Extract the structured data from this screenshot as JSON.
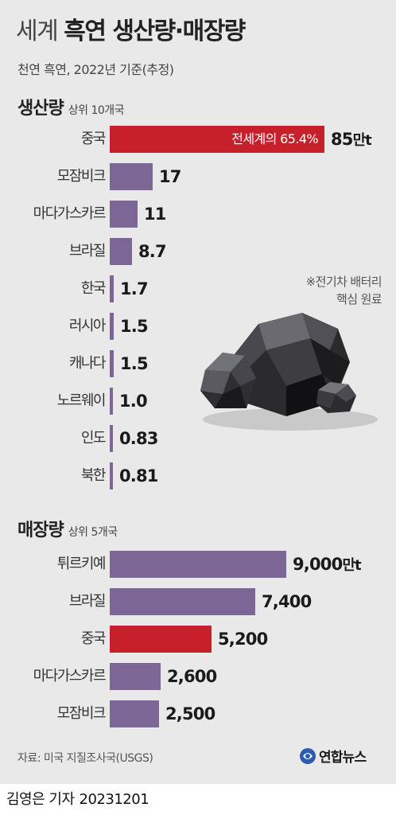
{
  "header": {
    "title_light": "세계",
    "title_bold": "흑연 생산량·매장량",
    "subtitle": "천연 흑연, 2022년 기준(추정)"
  },
  "note": [
    "※전기차 배터리",
    "핵심 원료"
  ],
  "footer": {
    "source": "자료: 미국 지질조사국(USGS)",
    "logo": "연합뉴스",
    "reporter": "김영은 기자",
    "date": "20231201"
  },
  "colors": {
    "highlight": "#c8202a",
    "bar": "#7b6696",
    "background": "#e9e9e9",
    "graphite": "#2b2b2e"
  },
  "chart_data": [
    {
      "type": "bar",
      "orientation": "horizontal",
      "title": "생산량",
      "subtitle": "상위 10개국",
      "unit": "만t",
      "categories": [
        "중국",
        "모잠비크",
        "마다가스카르",
        "브라질",
        "한국",
        "러시아",
        "캐나다",
        "노르웨이",
        "인도",
        "북한"
      ],
      "values": [
        85,
        17,
        11,
        8.7,
        1.7,
        1.5,
        1.5,
        1.0,
        0.83,
        0.81
      ],
      "value_labels": [
        "85",
        "17",
        "11",
        "8.7",
        "1.7",
        "1.5",
        "1.5",
        "1.0",
        "0.83",
        "0.81"
      ],
      "highlight": [
        "중국"
      ],
      "annotation": {
        "category": "중국",
        "text": "전세계의 65.4%"
      },
      "grid": false
    },
    {
      "type": "bar",
      "orientation": "horizontal",
      "title": "매장량",
      "subtitle": "상위 5개국",
      "unit": "만t",
      "categories": [
        "튀르키예",
        "브라질",
        "중국",
        "마다가스카르",
        "모잠비크"
      ],
      "values": [
        9000,
        7400,
        5200,
        2600,
        2500
      ],
      "value_labels": [
        "9,000",
        "7,400",
        "5,200",
        "2,600",
        "2,500"
      ],
      "highlight": [
        "중국"
      ],
      "grid": false
    }
  ]
}
